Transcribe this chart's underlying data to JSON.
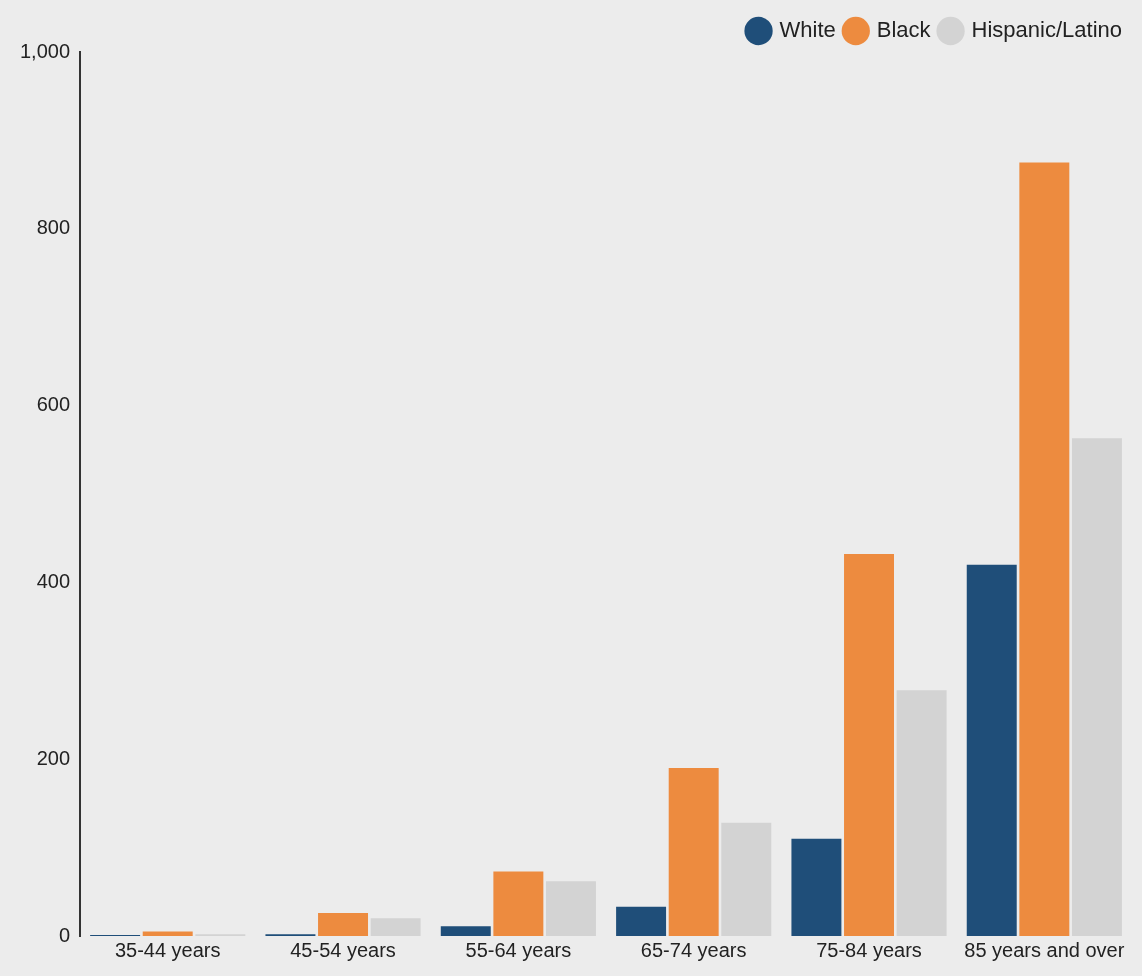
{
  "chart_data": {
    "type": "bar",
    "categories": [
      "35-44 years",
      "45-54 years",
      "55-64 years",
      "65-74 years",
      "75-84 years",
      "85 years and over"
    ],
    "series": [
      {
        "name": "White",
        "color": "#1f4e79",
        "values": [
          1,
          2,
          11,
          33,
          110,
          420
        ]
      },
      {
        "name": "Black",
        "color": "#ed8b3f",
        "values": [
          5,
          26,
          73,
          190,
          432,
          875
        ]
      },
      {
        "name": "Hispanic/Latino",
        "color": "#d3d3d3",
        "values": [
          2,
          20,
          62,
          128,
          278,
          563
        ]
      }
    ],
    "ylim": [
      0,
      1000
    ],
    "yticks": [
      0,
      200,
      400,
      600,
      800,
      {
        "value": 1000,
        "label": "1,000"
      }
    ],
    "grid": false,
    "legend": "top right"
  }
}
